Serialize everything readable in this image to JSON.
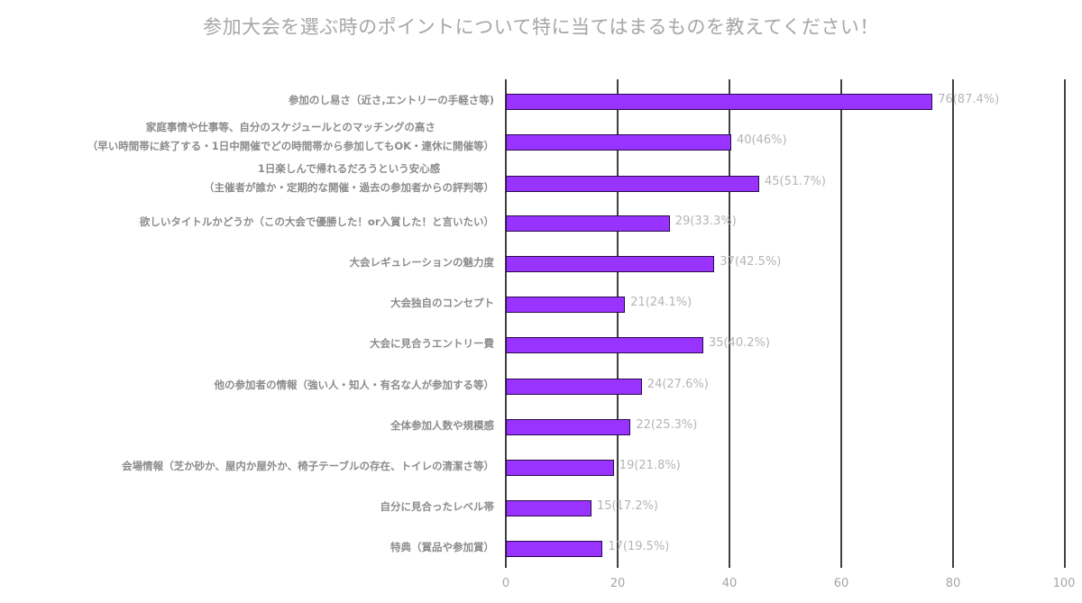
{
  "title": "参加大会を選ぶ時のポイントについて特に当てはまるものを教えてください！",
  "colors": {
    "bar": "#9933ff",
    "bar_border": "#2a0a4a",
    "grid": "#404040",
    "text": "#a6a6a6"
  },
  "axis": {
    "ticks": [
      "0",
      "20",
      "40",
      "60",
      "80",
      "100"
    ]
  },
  "rows": [
    {
      "label1": "参加のし易さ（近さ,エントリーの手軽さ等)",
      "label2": "",
      "value": 76,
      "display": "76(87.4%)"
    },
    {
      "label1": "家庭事情や仕事等、自分のスケジュールとのマッチングの高さ",
      "label2": "（早い時間帯に終了する・1日中開催でどの時間帯から参加してもOK・連休に開催等）",
      "value": 40,
      "display": "40(46%)"
    },
    {
      "label1": "1日楽しんで帰れるだろうという安心感",
      "label2": "（主催者が誰か・定期的な開催・過去の参加者からの評判等）",
      "value": 45,
      "display": "45(51.7%)"
    },
    {
      "label1": "欲しいタイトルかどうか（この大会で優勝した！or入賞した！と言いたい）",
      "label2": "",
      "value": 29,
      "display": "29(33.3%)"
    },
    {
      "label1": "大会レギュレーションの魅力度",
      "label2": "",
      "value": 37,
      "display": "37(42.5%)"
    },
    {
      "label1": "大会独自のコンセプト",
      "label2": "",
      "value": 21,
      "display": "21(24.1%)"
    },
    {
      "label1": "大会に見合うエントリー費",
      "label2": "",
      "value": 35,
      "display": "35(40.2%)"
    },
    {
      "label1": "他の参加者の情報（強い人・知人・有名な人が参加する等）",
      "label2": "",
      "value": 24,
      "display": "24(27.6%)"
    },
    {
      "label1": "全体参加人数や規模感",
      "label2": "",
      "value": 22,
      "display": "22(25.3%)"
    },
    {
      "label1": "会場情報（芝か砂か、屋内か屋外か、椅子テーブルの存在、トイレの清潔さ等）",
      "label2": "",
      "value": 19,
      "display": "19(21.8%)"
    },
    {
      "label1": "自分に見合ったレベル帯",
      "label2": "",
      "value": 15,
      "display": "15(17.2%)"
    },
    {
      "label1": "特典（賞品や参加賞）",
      "label2": "",
      "value": 17,
      "display": "17(19.5%)"
    }
  ],
  "chart_data": {
    "type": "bar",
    "orientation": "horizontal",
    "title": "参加大会を選ぶ時のポイントについて特に当てはまるものを教えてください！",
    "categories": [
      "参加のし易さ（近さ,エントリーの手軽さ等)",
      "家庭事情や仕事等、自分のスケジュールとのマッチングの高さ（早い時間帯に終了する・1日中開催でどの時間帯から参加してもOK・連休に開催等）",
      "1日楽しんで帰れるだろうという安心感（主催者が誰か・定期的な開催・過去の参加者からの評判等）",
      "欲しいタイトルかどうか（この大会で優勝した！or入賞した！と言いたい）",
      "大会レギュレーションの魅力度",
      "大会独自のコンセプト",
      "大会に見合うエントリー費",
      "他の参加者の情報（強い人・知人・有名な人が参加する等）",
      "全体参加人数や規模感",
      "会場情報（芝か砂か、屋内か屋外か、椅子テーブルの存在、トイレの清潔さ等）",
      "自分に見合ったレベル帯",
      "特典（賞品や参加賞）"
    ],
    "values": [
      76,
      40,
      45,
      29,
      37,
      21,
      35,
      24,
      22,
      19,
      15,
      17
    ],
    "percentages": [
      87.4,
      46,
      51.7,
      33.3,
      42.5,
      24.1,
      40.2,
      27.6,
      25.3,
      21.8,
      17.2,
      19.5
    ],
    "data_labels": [
      "76(87.4%)",
      "40(46%)",
      "45(51.7%)",
      "29(33.3%)",
      "37(42.5%)",
      "21(24.1%)",
      "35(40.2%)",
      "24(27.6%)",
      "22(25.3%)",
      "19(21.8%)",
      "15(17.2%)",
      "17(19.5%)"
    ],
    "xlabel": "",
    "ylabel": "",
    "xlim": [
      0,
      100
    ],
    "xticks": [
      0,
      20,
      40,
      60,
      80,
      100
    ],
    "grid": true,
    "legend": null
  }
}
